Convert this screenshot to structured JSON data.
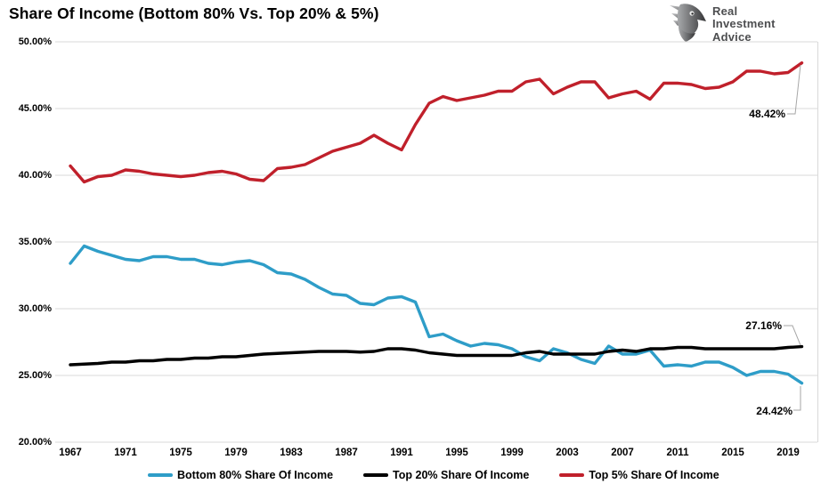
{
  "header": {
    "title": "Share Of Income (Bottom 80% Vs. Top 20% & 5%)"
  },
  "logo": {
    "name": "Real Investment Advice",
    "lines": [
      "Real",
      "Investment",
      "Advice"
    ]
  },
  "colors": {
    "bottom80": "#2E9DC8",
    "top20": "#000000",
    "top5": "#C0202B",
    "gridline": "#D9D9D9",
    "leader_line": "#A6A6A6",
    "logo_text": "#4D4E50"
  },
  "chart_data": {
    "type": "line",
    "title": "Share Of Income (Bottom 80% Vs. Top 20% & 5%)",
    "x_start": 1967,
    "x_end": 2020,
    "x_ticks": [
      1967,
      1971,
      1975,
      1979,
      1983,
      1987,
      1991,
      1995,
      1999,
      2003,
      2007,
      2011,
      2015,
      2019
    ],
    "y_ticks": [
      {
        "value": 50,
        "label": "50.00%"
      },
      {
        "value": 45,
        "label": "45.00%"
      },
      {
        "value": 40,
        "label": "40.00%"
      },
      {
        "value": 35,
        "label": "35.00%"
      },
      {
        "value": 30,
        "label": "30.00%"
      },
      {
        "value": 25,
        "label": "25.00%"
      },
      {
        "value": 20,
        "label": "20.00%"
      }
    ],
    "ylim": [
      20,
      50
    ],
    "grid": "horizontal",
    "legend_position": "bottom",
    "series": [
      {
        "name": "Bottom 80% Share Of Income",
        "color": "#2E9DC8",
        "values": [
          33.4,
          34.7,
          34.3,
          34.0,
          33.7,
          33.6,
          33.9,
          33.9,
          33.7,
          33.7,
          33.4,
          33.3,
          33.5,
          33.6,
          33.3,
          32.7,
          32.6,
          32.2,
          31.6,
          31.1,
          31.0,
          30.4,
          30.3,
          30.8,
          30.9,
          30.5,
          27.9,
          28.1,
          27.6,
          27.2,
          27.4,
          27.3,
          27.0,
          26.4,
          26.1,
          27.0,
          26.7,
          26.2,
          25.9,
          27.2,
          26.6,
          26.6,
          26.9,
          25.7,
          25.8,
          25.7,
          26.0,
          26.0,
          25.6,
          25.0,
          25.3,
          25.3,
          25.1,
          24.42
        ]
      },
      {
        "name": "Top 20% Share Of Income",
        "color": "#000000",
        "values": [
          25.8,
          25.85,
          25.9,
          26.0,
          26.0,
          26.1,
          26.1,
          26.2,
          26.2,
          26.3,
          26.3,
          26.4,
          26.4,
          26.5,
          26.6,
          26.65,
          26.7,
          26.75,
          26.8,
          26.8,
          26.8,
          26.75,
          26.8,
          27.0,
          27.0,
          26.9,
          26.7,
          26.6,
          26.5,
          26.5,
          26.5,
          26.5,
          26.5,
          26.7,
          26.8,
          26.6,
          26.6,
          26.6,
          26.6,
          26.8,
          26.9,
          26.8,
          27.0,
          27.0,
          27.1,
          27.1,
          27.0,
          27.0,
          27.0,
          27.0,
          27.0,
          27.0,
          27.1,
          27.16
        ]
      },
      {
        "name": "Top 5% Share Of Income",
        "color": "#C0202B",
        "values": [
          40.7,
          39.5,
          39.9,
          40.0,
          40.4,
          40.3,
          40.1,
          40.0,
          39.9,
          40.0,
          40.2,
          40.3,
          40.1,
          39.7,
          39.6,
          40.5,
          40.6,
          40.8,
          41.3,
          41.8,
          42.1,
          42.4,
          43.0,
          42.4,
          41.9,
          43.8,
          45.4,
          45.9,
          45.6,
          45.8,
          46.0,
          46.3,
          46.3,
          47.0,
          47.2,
          46.1,
          46.6,
          47.0,
          47.0,
          45.8,
          46.1,
          46.3,
          45.7,
          46.9,
          46.9,
          46.8,
          46.5,
          46.6,
          47.0,
          47.8,
          47.8,
          47.6,
          47.7,
          48.42
        ]
      }
    ],
    "annotations": [
      {
        "label": "48.42%",
        "series": "Top 5% Share Of Income",
        "year": 2020,
        "value": 48.42
      },
      {
        "label": "27.16%",
        "series": "Top 20% Share Of Income",
        "year": 2020,
        "value": 27.16
      },
      {
        "label": "24.42%",
        "series": "Bottom 80% Share Of Income",
        "year": 2020,
        "value": 24.42
      }
    ]
  }
}
